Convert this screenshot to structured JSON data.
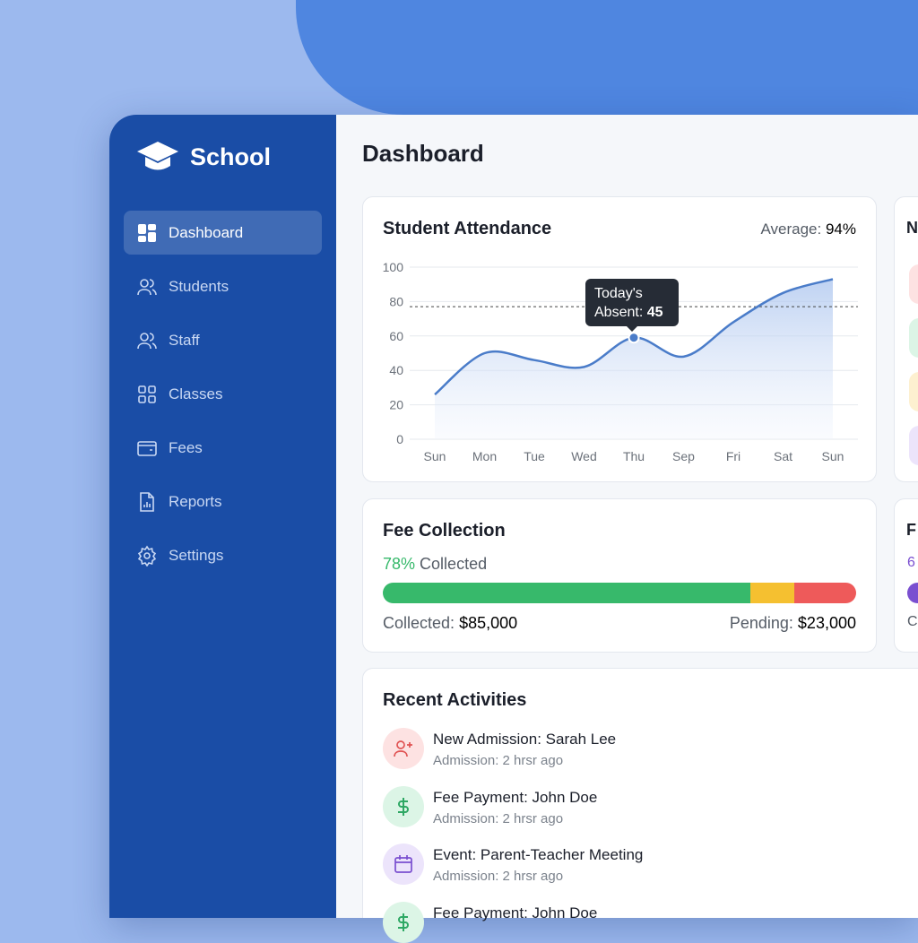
{
  "brand": {
    "name": "School"
  },
  "sidebar": {
    "items": [
      {
        "label": "Dashboard",
        "icon": "grid-icon",
        "active": true
      },
      {
        "label": "Students",
        "icon": "users-icon"
      },
      {
        "label": "Staff",
        "icon": "users-icon"
      },
      {
        "label": "Classes",
        "icon": "apps-icon"
      },
      {
        "label": "Fees",
        "icon": "wallet-icon"
      },
      {
        "label": "Reports",
        "icon": "file-chart-icon"
      },
      {
        "label": "Settings",
        "icon": "gear-icon"
      }
    ]
  },
  "page": {
    "title": "Dashboard"
  },
  "attendance": {
    "title": "Student Attendance",
    "average_label": "Average:",
    "average_value": "94%",
    "tooltip_line1": "Today's",
    "tooltip_label": "Absent:",
    "tooltip_value": "45"
  },
  "chart_data": {
    "type": "area",
    "categories": [
      "Sun",
      "Mon",
      "Tue",
      "Wed",
      "Thu",
      "Sep",
      "Fri",
      "Sat",
      "Sun"
    ],
    "values": [
      26,
      50,
      46,
      42,
      59,
      48,
      68,
      85,
      93
    ],
    "reference_line": 77,
    "highlight_index": 4,
    "ylim": [
      0,
      100
    ],
    "yticks": [
      "0",
      "20",
      "40",
      "60",
      "80",
      "100"
    ],
    "grid": true,
    "color": "#4a7cc9"
  },
  "fees": {
    "title": "Fee Collection",
    "percent": "78%",
    "percent_label": "Collected",
    "collected_label": "Collected:",
    "collected_value": "$85,000",
    "pending_label": "Pending:",
    "pending_value": "$23,000",
    "segments": [
      {
        "percent": 77.6,
        "color": "#37b96b"
      },
      {
        "percent": 9.4,
        "color": "#f5c030"
      },
      {
        "percent": 13,
        "color": "#ee5a5a"
      }
    ]
  },
  "right_cards": {
    "card1_initial": "N",
    "card2_initial": "F",
    "card2_line1": "6",
    "card2_line3": "C"
  },
  "activities": {
    "title": "Recent Activities",
    "items": [
      {
        "title": "New Admission: Sarah Lee",
        "sub": "Admission: 2 hrsr ago",
        "icon": "user-plus-icon",
        "bg": "#fde2e2",
        "color": "#e05252"
      },
      {
        "title": "Fee Payment: John Doe",
        "sub": "Admission: 2 hrsr ago",
        "icon": "dollar-icon",
        "bg": "#dcf5e6",
        "color": "#2ea864"
      },
      {
        "title": "Event: Parent-Teacher Meeting",
        "sub": "Admission: 2 hrsr ago",
        "icon": "calendar-icon",
        "bg": "#ece4fb",
        "color": "#7a4fd0"
      },
      {
        "title": "Fee Payment: John Doe",
        "sub": "",
        "icon": "dollar-icon",
        "bg": "#dcf5e6",
        "color": "#2ea864"
      }
    ]
  }
}
